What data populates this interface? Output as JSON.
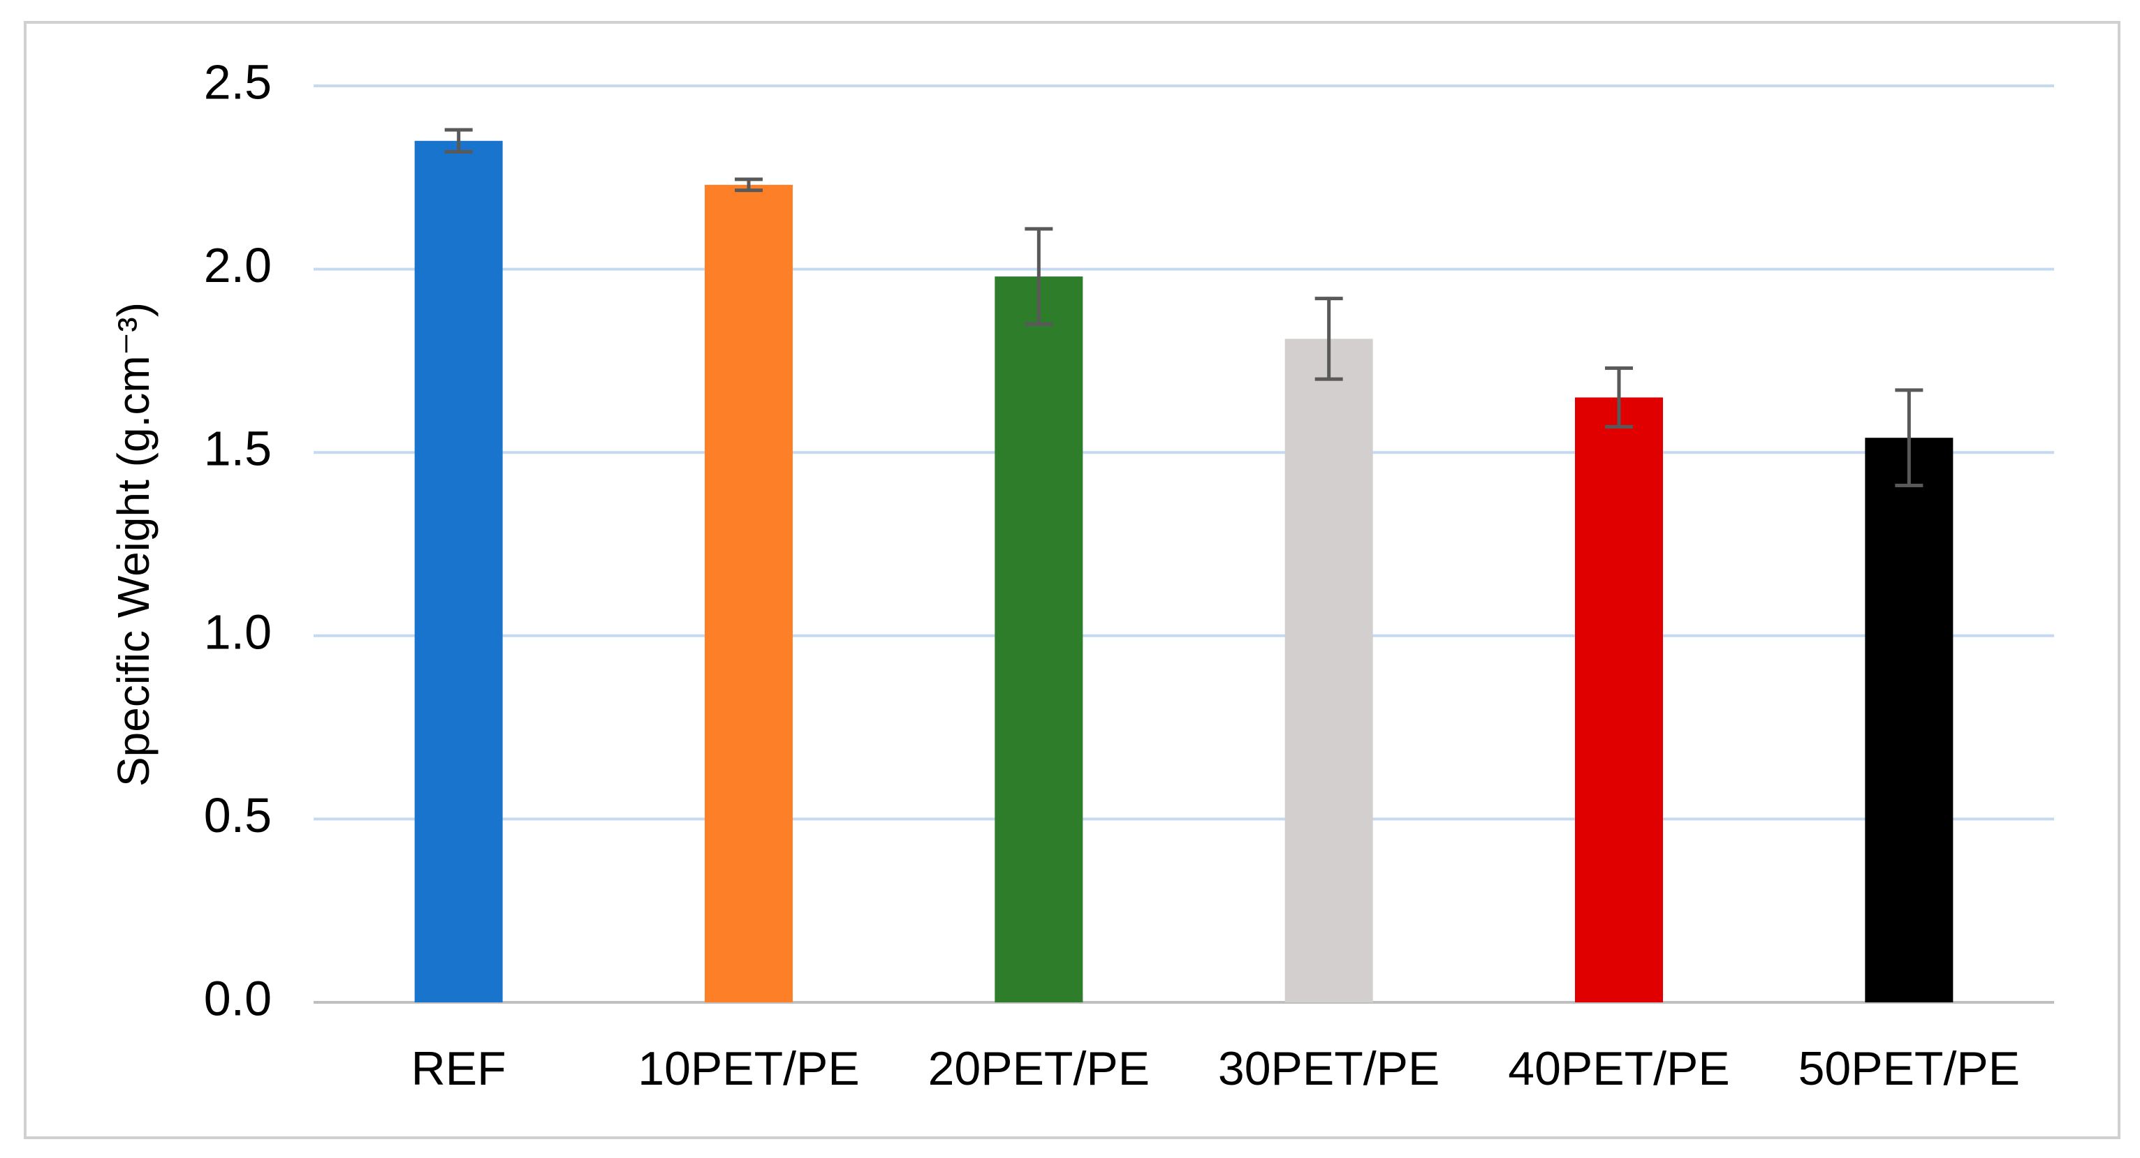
{
  "chart_data": {
    "type": "bar",
    "y_label": "Specific Weight (g.cm⁻³)",
    "categories": [
      "REF",
      "10PET/PE",
      "20PET/PE",
      "30PET/PE",
      "40PET/PE",
      "50PET/PE"
    ],
    "values": [
      2.35,
      2.23,
      1.98,
      1.81,
      1.65,
      1.54
    ],
    "errors": [
      0.03,
      0.015,
      0.13,
      0.11,
      0.08,
      0.13
    ],
    "colors": [
      "#1874cd",
      "#fd7f28",
      "#2e7d2a",
      "#d3cfcf",
      "#e00000",
      "#000000"
    ],
    "ylim": [
      0,
      2.5
    ],
    "yticks": [
      {
        "value": 0,
        "label": "0.0"
      },
      0.5,
      {
        "value": 1,
        "label": "1.0"
      },
      1.5,
      {
        "value": 2,
        "label": "2.0"
      },
      2.5
    ],
    "grid": true
  }
}
